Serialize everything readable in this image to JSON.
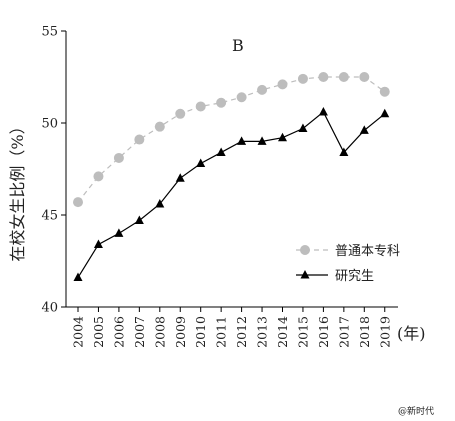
{
  "chart_data": {
    "type": "line",
    "panel_label": "B",
    "ylabel": "在校女生比例（%）",
    "xunit": "(年)",
    "ylim": [
      40,
      55
    ],
    "yticks": [
      40,
      45,
      50,
      55
    ],
    "categories": [
      "2004",
      "2005",
      "2006",
      "2007",
      "2008",
      "2009",
      "2010",
      "2011",
      "2012",
      "2013",
      "2014",
      "2015",
      "2016",
      "2017",
      "2018",
      "2019"
    ],
    "legend_position": "lower-right",
    "grid": false,
    "series": [
      {
        "name": "普通本专科",
        "marker": "circle",
        "line_style": "dashed",
        "color": "#bdbdbd",
        "values": [
          45.7,
          47.1,
          48.1,
          49.1,
          49.8,
          50.5,
          50.9,
          51.1,
          51.4,
          51.8,
          52.1,
          52.4,
          52.5,
          52.5,
          52.5,
          51.7
        ]
      },
      {
        "name": "研究生",
        "marker": "triangle",
        "line_style": "solid",
        "color": "#000000",
        "values": [
          41.6,
          43.4,
          44.0,
          44.7,
          45.6,
          47.0,
          47.8,
          48.4,
          49.0,
          49.0,
          49.2,
          49.7,
          50.6,
          48.4,
          49.6,
          50.5
        ]
      }
    ]
  },
  "watermark": "@新时代"
}
